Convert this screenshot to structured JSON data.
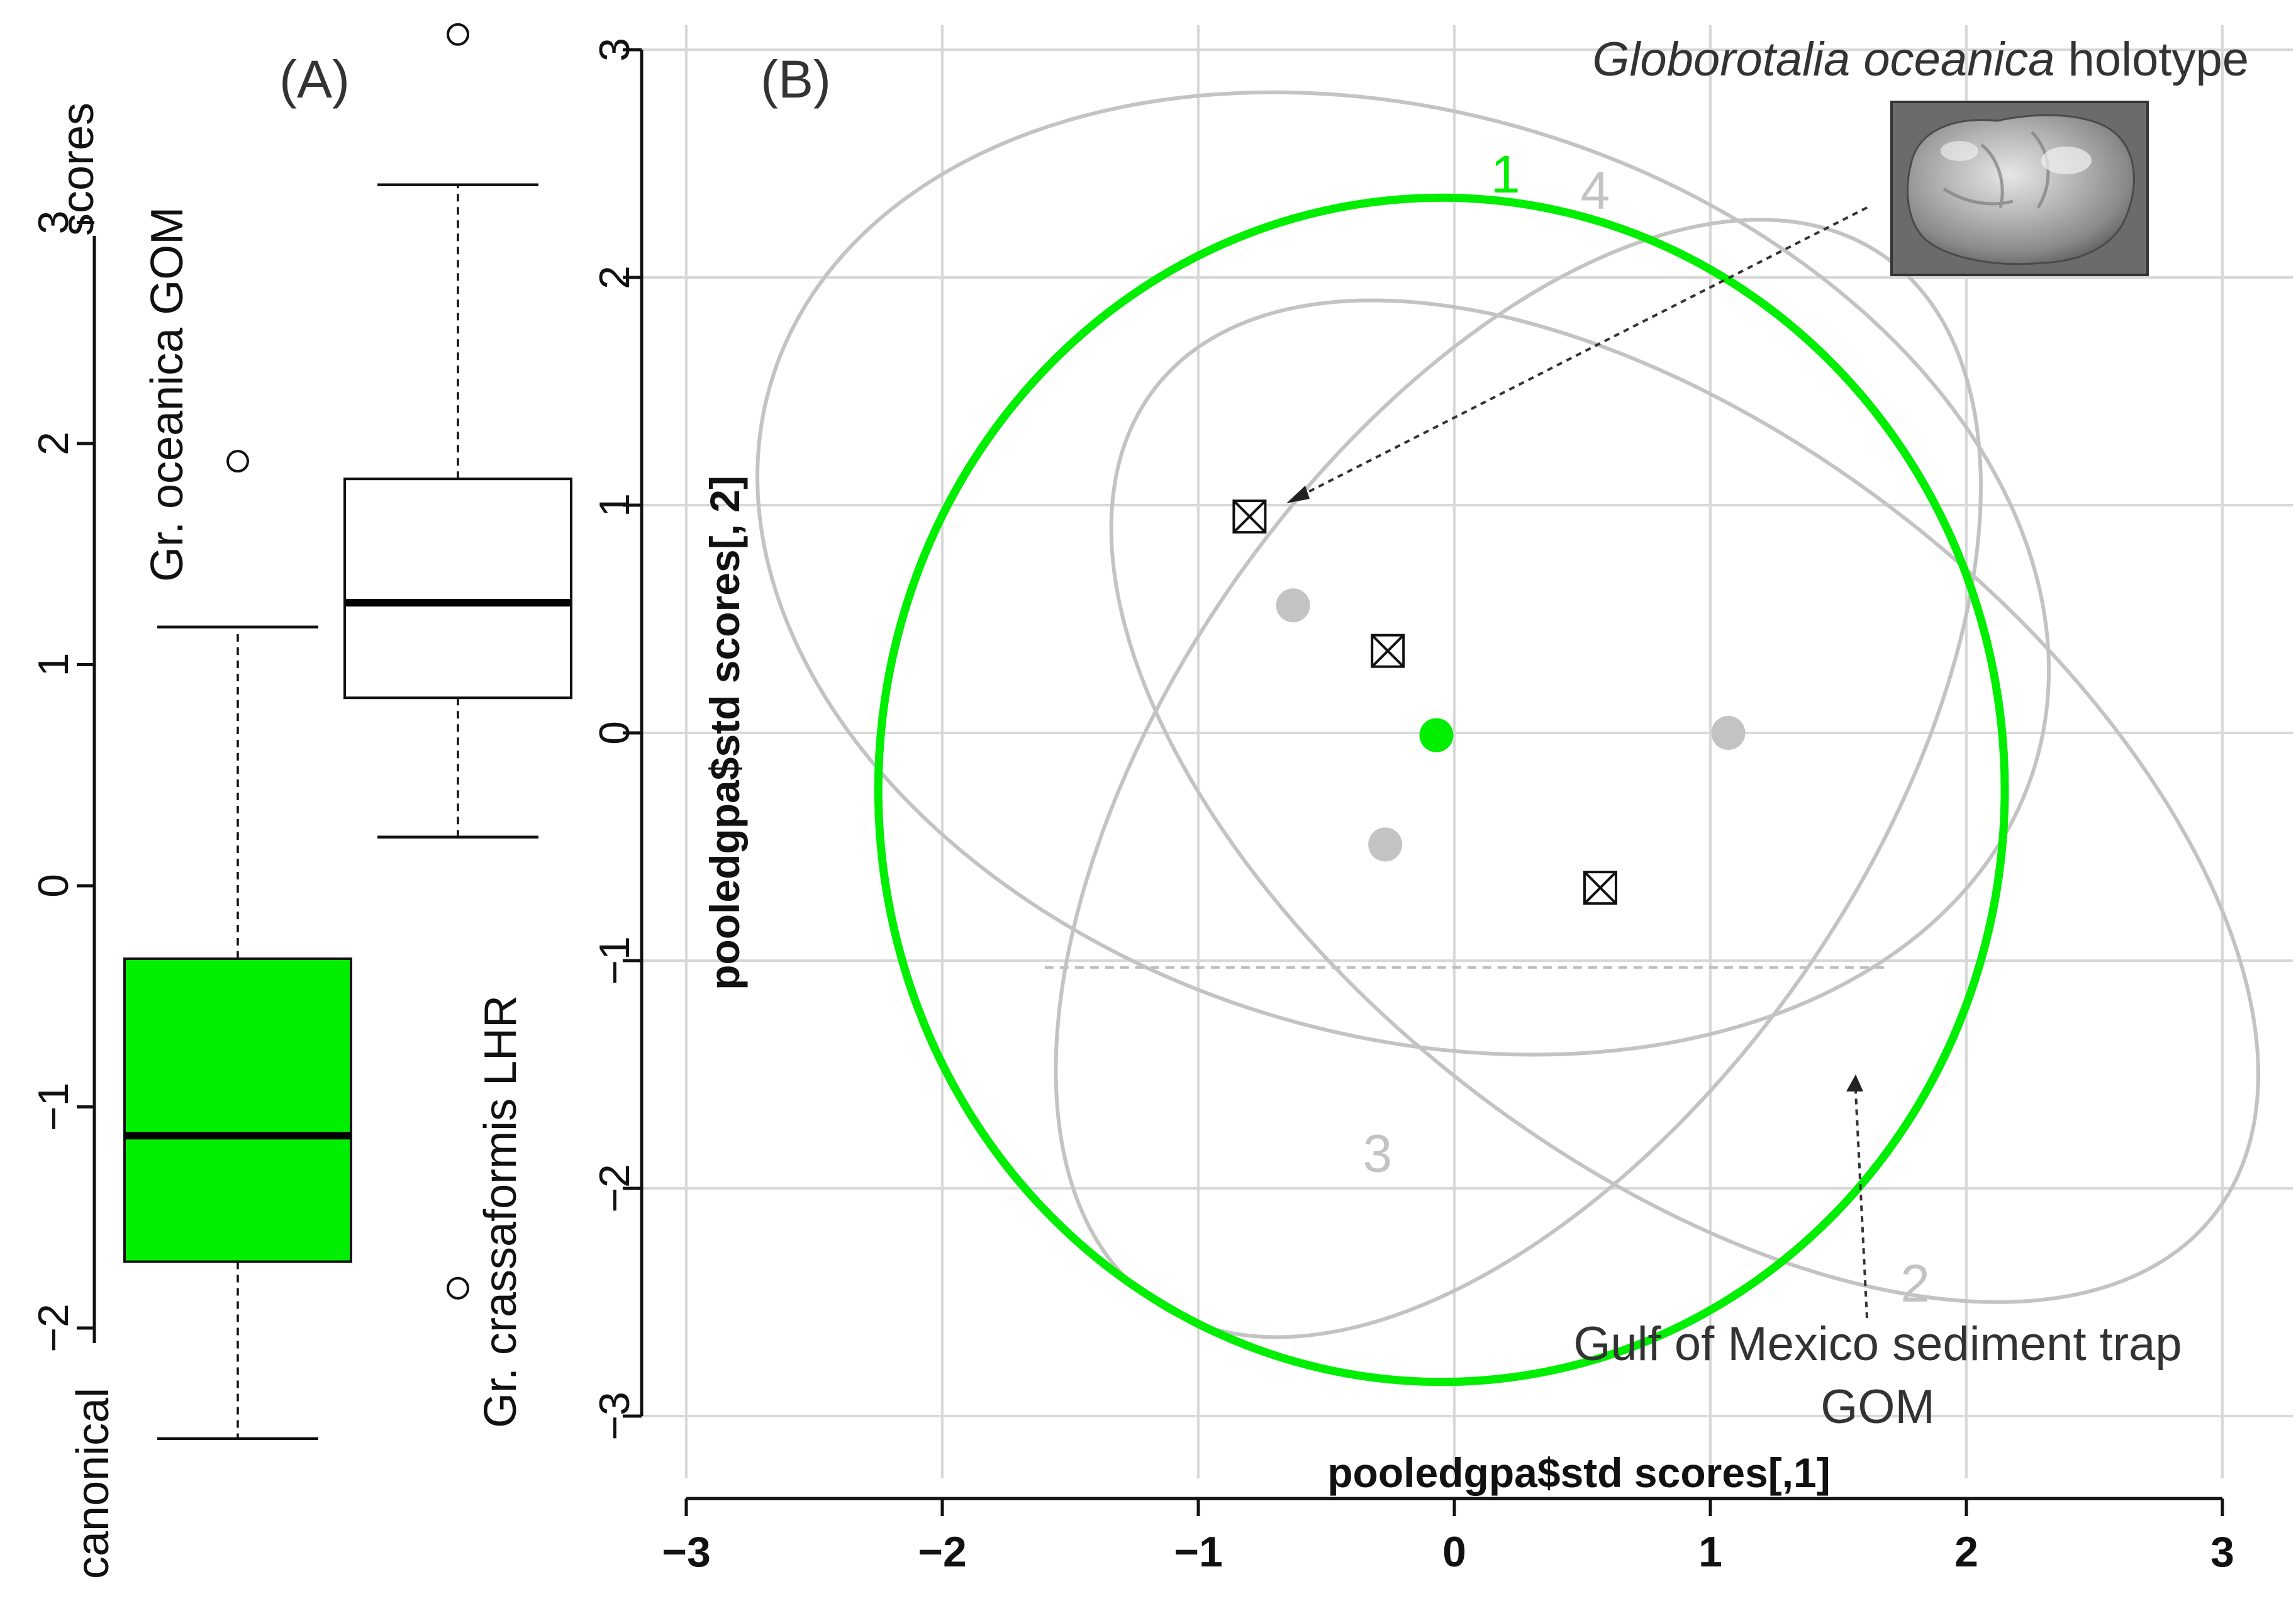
{
  "colors": {
    "green": "#00ee00",
    "gray": "#c3c3c3",
    "black": "#111111",
    "grid": "#d8d8d8",
    "arrow": "#333333",
    "dashed": "#bdbdbd"
  },
  "chart_data": [
    {
      "type": "box",
      "panel_label": "(A)",
      "ylabel_top": "scores",
      "ylabel_bottom": "canonical",
      "ylim": [
        -2.5,
        3.5
      ],
      "yticks": [
        -2,
        -1,
        0,
        1,
        2,
        3
      ],
      "ytick_labels": [
        "−2",
        "−1",
        "0",
        "1",
        "2",
        "3"
      ],
      "boxes": [
        {
          "name": "Gr. oceanica GOM",
          "color": "green",
          "whisker_min": -2.5,
          "q1": -1.7,
          "median": -1.13,
          "q3": -0.33,
          "whisker_max": 1.17,
          "outliers": [
            1.92
          ]
        },
        {
          "name": "Gr. crassaformis LHR",
          "color": "white",
          "whisker_min": 0.22,
          "q1": 0.85,
          "median": 1.28,
          "q3": 1.84,
          "whisker_max": 3.17,
          "outliers": [
            3.85,
            -1.82
          ]
        }
      ]
    },
    {
      "type": "scatter",
      "panel_label": "(B)",
      "xlabel": "pooledgpa$std scores[,1]",
      "ylabel": "pooledgpa$std scores[, 2]",
      "xlim": [
        -3,
        3
      ],
      "ylim": [
        -3,
        3
      ],
      "xticks": [
        -3,
        -2,
        -1,
        0,
        1,
        2,
        3
      ],
      "xtick_labels": [
        "−3",
        "−2",
        "−1",
        "0",
        "1",
        "2",
        "3"
      ],
      "yticks": [
        -3,
        -2,
        -1,
        0,
        1,
        2,
        3
      ],
      "ytick_labels": [
        "−3",
        "−2",
        "−1",
        "0",
        "1",
        "2",
        "3"
      ],
      "grid": true,
      "ellipses": [
        {
          "label": "1",
          "color": "green",
          "cx": -0.05,
          "cy": -0.25,
          "rx": 2.2,
          "ry": 2.6,
          "rotation": 0,
          "label_x": 0.2,
          "label_y": 2.45
        },
        {
          "label": "2",
          "color": "gray",
          "cx": 0.9,
          "cy": -0.3,
          "rx": 1.4,
          "ry": 2.95,
          "rotation": 52,
          "label_x": 1.8,
          "label_y": -2.42
        },
        {
          "label": "3",
          "color": "gray",
          "cx": -0.2,
          "cy": 0.7,
          "rx": 1.8,
          "ry": 2.9,
          "rotation": 73,
          "label_x": -0.3,
          "label_y": -1.85
        },
        {
          "label": "4",
          "color": "gray",
          "cx": 0.25,
          "cy": -0.2,
          "rx": 1.35,
          "ry": 2.8,
          "rotation": -35,
          "label_x": 0.55,
          "label_y": 2.38
        }
      ],
      "points": [
        {
          "x": -0.63,
          "y": 0.56,
          "color": "gray",
          "shape": "circle"
        },
        {
          "x": -0.27,
          "y": -0.49,
          "color": "gray",
          "shape": "circle"
        },
        {
          "x": 1.07,
          "y": 0.0,
          "color": "gray",
          "shape": "circle"
        },
        {
          "x": -0.07,
          "y": -0.01,
          "color": "green",
          "shape": "circle"
        },
        {
          "x": -0.8,
          "y": 0.95,
          "color": "black",
          "shape": "boxed-x"
        },
        {
          "x": -0.26,
          "y": 0.36,
          "color": "black",
          "shape": "boxed-x"
        },
        {
          "x": 0.57,
          "y": -0.68,
          "color": "black",
          "shape": "boxed-x"
        }
      ],
      "annotations": [
        {
          "text_italic": "Globorotalia oceanica",
          "text": " holotype"
        },
        {
          "lines": [
            "Gulf of Mexico sediment trap",
            "GOM"
          ]
        }
      ],
      "dashed_line": {
        "x": [
          -1.6,
          1.7
        ],
        "y": -1.03
      }
    }
  ]
}
